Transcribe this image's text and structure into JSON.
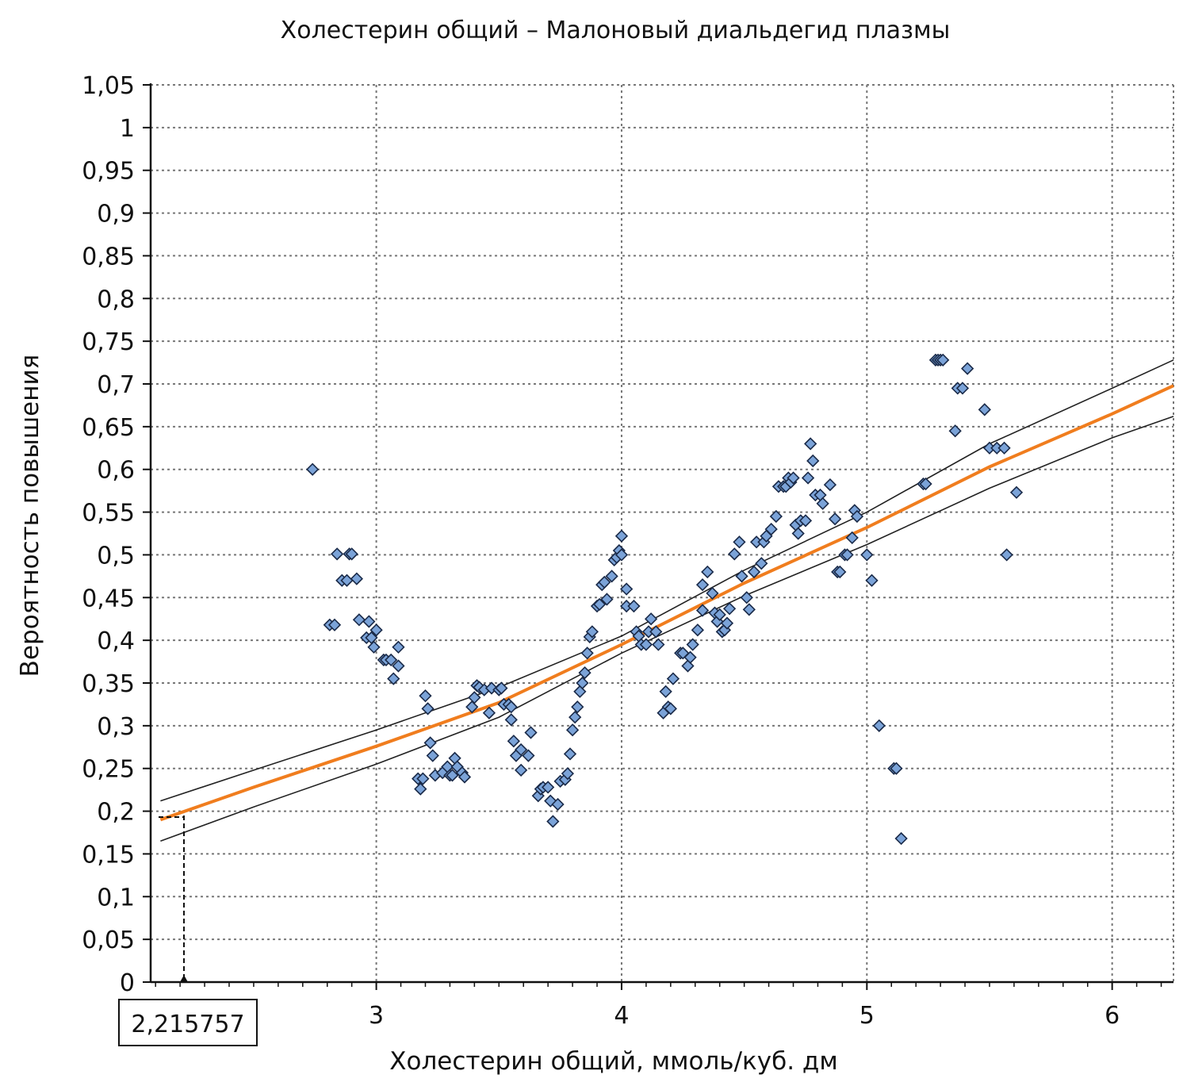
{
  "chart_data": {
    "type": "scatter",
    "title": "Холестерин общий – Малоновый диальдегид плазмы",
    "xlabel": "Холестерин общий, ммоль/куб. дм",
    "ylabel": "Вероятность повышения",
    "xlim": [
      2.08,
      6.25
    ],
    "ylim": [
      0,
      1.05
    ],
    "x_ticks": [
      3,
      4,
      5,
      6
    ],
    "x_tick_labels": [
      "3",
      "4",
      "5",
      "6"
    ],
    "y_ticks": [
      0,
      0.05,
      0.1,
      0.15,
      0.2,
      0.25,
      0.3,
      0.35,
      0.4,
      0.45,
      0.5,
      0.55,
      0.6,
      0.65,
      0.7,
      0.75,
      0.8,
      0.85,
      0.9,
      0.95,
      1,
      1.05
    ],
    "y_tick_labels": [
      "0",
      "0,05",
      "0,1",
      "0,15",
      "0,2",
      "0,25",
      "0,3",
      "0,35",
      "0,4",
      "0,45",
      "0,5",
      "0,55",
      "0,6",
      "0,65",
      "0,7",
      "0,75",
      "0,8",
      "0,85",
      "0,9",
      "0,95",
      "1",
      "1,05"
    ],
    "grid": true,
    "cursor": {
      "x": 2.215757,
      "y": 0.195,
      "label": "2,215757"
    },
    "colors": {
      "points_fill": "#7ba3d8",
      "points_edge": "#1a2a48",
      "fit": "#f07d1e",
      "band": "#222222",
      "grid": "#777777"
    },
    "scatter": [
      [
        2.74,
        0.6
      ],
      [
        2.81,
        0.418
      ],
      [
        2.83,
        0.418
      ],
      [
        2.84,
        0.501
      ],
      [
        2.86,
        0.47
      ],
      [
        2.88,
        0.47
      ],
      [
        2.89,
        0.501
      ],
      [
        2.9,
        0.501
      ],
      [
        2.92,
        0.472
      ],
      [
        2.93,
        0.424
      ],
      [
        2.96,
        0.403
      ],
      [
        2.97,
        0.422
      ],
      [
        2.98,
        0.403
      ],
      [
        2.99,
        0.392
      ],
      [
        3.0,
        0.412
      ],
      [
        3.03,
        0.377
      ],
      [
        3.04,
        0.377
      ],
      [
        3.06,
        0.377
      ],
      [
        3.07,
        0.355
      ],
      [
        3.09,
        0.37
      ],
      [
        3.09,
        0.392
      ],
      [
        3.17,
        0.238
      ],
      [
        3.18,
        0.226
      ],
      [
        3.19,
        0.238
      ],
      [
        3.2,
        0.335
      ],
      [
        3.21,
        0.32
      ],
      [
        3.22,
        0.28
      ],
      [
        3.23,
        0.265
      ],
      [
        3.24,
        0.242
      ],
      [
        3.27,
        0.245
      ],
      [
        3.29,
        0.252
      ],
      [
        3.3,
        0.242
      ],
      [
        3.31,
        0.242
      ],
      [
        3.32,
        0.262
      ],
      [
        3.33,
        0.252
      ],
      [
        3.35,
        0.245
      ],
      [
        3.36,
        0.24
      ],
      [
        3.39,
        0.322
      ],
      [
        3.4,
        0.333
      ],
      [
        3.41,
        0.347
      ],
      [
        3.42,
        0.345
      ],
      [
        3.44,
        0.342
      ],
      [
        3.46,
        0.315
      ],
      [
        3.47,
        0.344
      ],
      [
        3.5,
        0.342
      ],
      [
        3.51,
        0.344
      ],
      [
        3.52,
        0.325
      ],
      [
        3.54,
        0.325
      ],
      [
        3.55,
        0.322
      ],
      [
        3.55,
        0.307
      ],
      [
        3.56,
        0.282
      ],
      [
        3.57,
        0.265
      ],
      [
        3.59,
        0.248
      ],
      [
        3.59,
        0.272
      ],
      [
        3.62,
        0.265
      ],
      [
        3.63,
        0.292
      ],
      [
        3.66,
        0.218
      ],
      [
        3.67,
        0.226
      ],
      [
        3.68,
        0.228
      ],
      [
        3.7,
        0.228
      ],
      [
        3.71,
        0.212
      ],
      [
        3.72,
        0.188
      ],
      [
        3.74,
        0.208
      ],
      [
        3.75,
        0.235
      ],
      [
        3.77,
        0.237
      ],
      [
        3.78,
        0.244
      ],
      [
        3.79,
        0.267
      ],
      [
        3.8,
        0.295
      ],
      [
        3.81,
        0.31
      ],
      [
        3.82,
        0.322
      ],
      [
        3.83,
        0.34
      ],
      [
        3.84,
        0.35
      ],
      [
        3.85,
        0.362
      ],
      [
        3.86,
        0.385
      ],
      [
        3.87,
        0.404
      ],
      [
        3.88,
        0.41
      ],
      [
        3.9,
        0.44
      ],
      [
        3.91,
        0.442
      ],
      [
        3.92,
        0.465
      ],
      [
        3.93,
        0.468
      ],
      [
        3.94,
        0.448
      ],
      [
        3.96,
        0.475
      ],
      [
        3.97,
        0.494
      ],
      [
        3.98,
        0.497
      ],
      [
        3.99,
        0.505
      ],
      [
        4.0,
        0.522
      ],
      [
        4.0,
        0.5
      ],
      [
        4.02,
        0.46
      ],
      [
        4.02,
        0.44
      ],
      [
        4.05,
        0.44
      ],
      [
        4.06,
        0.41
      ],
      [
        4.07,
        0.405
      ],
      [
        4.08,
        0.395
      ],
      [
        4.1,
        0.395
      ],
      [
        4.11,
        0.41
      ],
      [
        4.12,
        0.425
      ],
      [
        4.14,
        0.41
      ],
      [
        4.15,
        0.395
      ],
      [
        4.17,
        0.315
      ],
      [
        4.18,
        0.34
      ],
      [
        4.19,
        0.322
      ],
      [
        4.2,
        0.32
      ],
      [
        4.21,
        0.355
      ],
      [
        4.24,
        0.385
      ],
      [
        4.25,
        0.385
      ],
      [
        4.27,
        0.37
      ],
      [
        4.28,
        0.38
      ],
      [
        4.29,
        0.395
      ],
      [
        4.31,
        0.412
      ],
      [
        4.33,
        0.435
      ],
      [
        4.33,
        0.465
      ],
      [
        4.35,
        0.48
      ],
      [
        4.37,
        0.455
      ],
      [
        4.38,
        0.432
      ],
      [
        4.39,
        0.422
      ],
      [
        4.4,
        0.43
      ],
      [
        4.41,
        0.41
      ],
      [
        4.42,
        0.412
      ],
      [
        4.43,
        0.42
      ],
      [
        4.44,
        0.437
      ],
      [
        4.46,
        0.501
      ],
      [
        4.48,
        0.515
      ],
      [
        4.49,
        0.475
      ],
      [
        4.51,
        0.45
      ],
      [
        4.52,
        0.436
      ],
      [
        4.54,
        0.48
      ],
      [
        4.55,
        0.515
      ],
      [
        4.57,
        0.49
      ],
      [
        4.58,
        0.515
      ],
      [
        4.59,
        0.522
      ],
      [
        4.61,
        0.53
      ],
      [
        4.63,
        0.545
      ],
      [
        4.64,
        0.58
      ],
      [
        4.66,
        0.58
      ],
      [
        4.67,
        0.58
      ],
      [
        4.68,
        0.59
      ],
      [
        4.69,
        0.585
      ],
      [
        4.7,
        0.59
      ],
      [
        4.71,
        0.535
      ],
      [
        4.72,
        0.525
      ],
      [
        4.73,
        0.54
      ],
      [
        4.75,
        0.54
      ],
      [
        4.76,
        0.59
      ],
      [
        4.77,
        0.63
      ],
      [
        4.78,
        0.61
      ],
      [
        4.79,
        0.57
      ],
      [
        4.81,
        0.57
      ],
      [
        4.82,
        0.56
      ],
      [
        4.85,
        0.582
      ],
      [
        4.87,
        0.542
      ],
      [
        4.88,
        0.48
      ],
      [
        4.89,
        0.48
      ],
      [
        4.91,
        0.5
      ],
      [
        4.92,
        0.5
      ],
      [
        4.94,
        0.52
      ],
      [
        4.95,
        0.552
      ],
      [
        4.96,
        0.545
      ],
      [
        5.0,
        0.5
      ],
      [
        5.02,
        0.47
      ],
      [
        5.05,
        0.3
      ],
      [
        5.11,
        0.25
      ],
      [
        5.12,
        0.25
      ],
      [
        5.14,
        0.168
      ],
      [
        5.23,
        0.583
      ],
      [
        5.24,
        0.583
      ],
      [
        5.28,
        0.728
      ],
      [
        5.29,
        0.728
      ],
      [
        5.3,
        0.728
      ],
      [
        5.31,
        0.728
      ],
      [
        5.36,
        0.645
      ],
      [
        5.37,
        0.695
      ],
      [
        5.39,
        0.695
      ],
      [
        5.41,
        0.718
      ],
      [
        5.48,
        0.67
      ],
      [
        5.5,
        0.625
      ],
      [
        5.53,
        0.625
      ],
      [
        5.56,
        0.625
      ],
      [
        5.57,
        0.5
      ],
      [
        5.61,
        0.573
      ]
    ],
    "fit_line": [
      [
        2.12,
        0.19
      ],
      [
        2.5,
        0.228
      ],
      [
        3.0,
        0.276
      ],
      [
        3.5,
        0.327
      ],
      [
        4.0,
        0.395
      ],
      [
        4.5,
        0.467
      ],
      [
        5.0,
        0.532
      ],
      [
        5.5,
        0.603
      ],
      [
        6.0,
        0.665
      ],
      [
        6.25,
        0.698
      ]
    ],
    "upper_band": [
      [
        2.12,
        0.212
      ],
      [
        2.5,
        0.248
      ],
      [
        3.0,
        0.295
      ],
      [
        3.5,
        0.345
      ],
      [
        4.0,
        0.405
      ],
      [
        4.5,
        0.482
      ],
      [
        5.0,
        0.55
      ],
      [
        5.5,
        0.63
      ],
      [
        6.0,
        0.695
      ],
      [
        6.25,
        0.728
      ]
    ],
    "lower_band": [
      [
        2.12,
        0.165
      ],
      [
        2.5,
        0.205
      ],
      [
        3.0,
        0.255
      ],
      [
        3.5,
        0.31
      ],
      [
        4.0,
        0.385
      ],
      [
        4.5,
        0.452
      ],
      [
        5.0,
        0.512
      ],
      [
        5.5,
        0.578
      ],
      [
        6.0,
        0.637
      ],
      [
        6.25,
        0.662
      ]
    ]
  }
}
